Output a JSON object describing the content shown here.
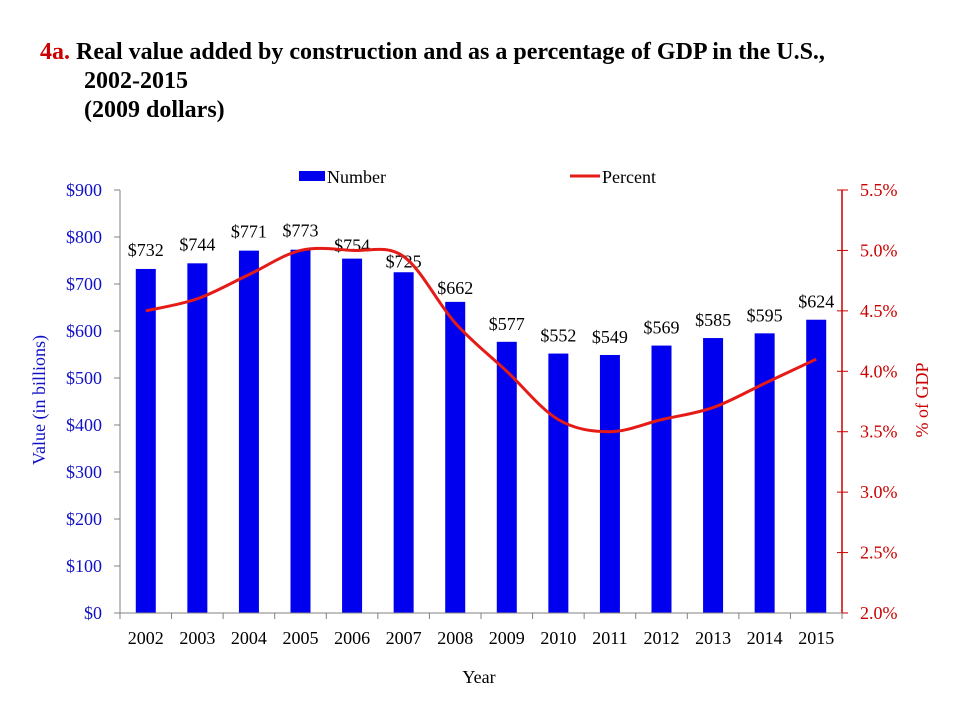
{
  "title": {
    "prefix": "4a.",
    "line1": "Real value added by construction and as a percentage of GDP in the U.S.,",
    "line2": "2002-2015",
    "line3": "(2009 dollars)"
  },
  "colors": {
    "bar": "#0000ee",
    "line": "#e41b17",
    "left_axis_text": "#1010c8",
    "right_axis": "#cc0000",
    "title_prefix": "#cc0000"
  },
  "chart_data": {
    "type": "bar",
    "categories": [
      "2002",
      "2003",
      "2004",
      "2005",
      "2006",
      "2007",
      "2008",
      "2009",
      "2010",
      "2011",
      "2012",
      "2013",
      "2014",
      "2015"
    ],
    "series": [
      {
        "name": "Number",
        "type": "bar",
        "axis": "left",
        "values": [
          732,
          744,
          771,
          773,
          754,
          725,
          662,
          577,
          552,
          549,
          569,
          585,
          595,
          624
        ],
        "labels": [
          "$732",
          "$744",
          "$771",
          "$773",
          "$754",
          "$725",
          "$662",
          "$577",
          "$552",
          "$549",
          "$569",
          "$585",
          "$595",
          "$624"
        ]
      },
      {
        "name": "Percent",
        "type": "line",
        "axis": "right",
        "values": [
          4.5,
          4.6,
          4.8,
          5.0,
          5.0,
          4.95,
          4.4,
          4.0,
          3.6,
          3.5,
          3.6,
          3.7,
          3.9,
          4.1
        ]
      }
    ],
    "xlabel": "Year",
    "ylabel": "Value (in billions)",
    "y2label": "% of GDP",
    "ylim": [
      0,
      900
    ],
    "y2lim": [
      2.0,
      5.5
    ],
    "yticks": [
      "$0",
      "$100",
      "$200",
      "$300",
      "$400",
      "$500",
      "$600",
      "$700",
      "$800",
      "$900"
    ],
    "y2ticks": [
      "2.0%",
      "2.5%",
      "3.0%",
      "3.5%",
      "4.0%",
      "4.5%",
      "5.0%",
      "5.5%"
    ],
    "grid": false,
    "legend_position": "top"
  }
}
